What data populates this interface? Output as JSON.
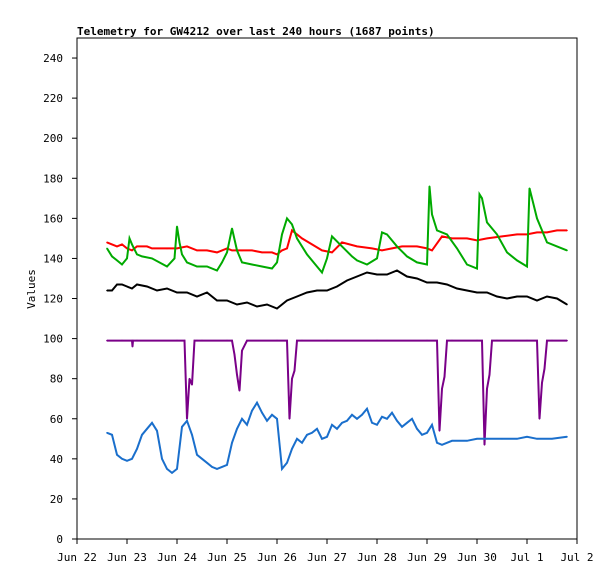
{
  "chart_data": {
    "type": "line",
    "title": "Telemetry for GW4212 over last 240 hours (1687 points)",
    "xlabel": "",
    "ylabel": "Values",
    "ylim": [
      0,
      250
    ],
    "yticks": [
      0,
      20,
      40,
      60,
      80,
      100,
      120,
      140,
      160,
      180,
      200,
      220,
      240
    ],
    "xlim": [
      0,
      10
    ],
    "xticks": [
      {
        "x": 0,
        "label": "Jun 22"
      },
      {
        "x": 1,
        "label": "Jun 23"
      },
      {
        "x": 2,
        "label": "Jun 24"
      },
      {
        "x": 3,
        "label": "Jun 25"
      },
      {
        "x": 4,
        "label": "Jun 26"
      },
      {
        "x": 5,
        "label": "Jun 27"
      },
      {
        "x": 6,
        "label": "Jun 28"
      },
      {
        "x": 7,
        "label": "Jun 29"
      },
      {
        "x": 8,
        "label": "Jun 30"
      },
      {
        "x": 9,
        "label": "Jul 1"
      },
      {
        "x": 10,
        "label": "Jul 2"
      }
    ],
    "grid": false,
    "legend": "none",
    "series": [
      {
        "color": "#ff0000",
        "x": [
          0.6,
          0.7,
          0.8,
          0.9,
          1.0,
          1.1,
          1.2,
          1.4,
          1.5,
          1.8,
          2.0,
          2.2,
          2.4,
          2.6,
          2.8,
          3.0,
          3.1,
          3.3,
          3.5,
          3.7,
          3.9,
          4.0,
          4.1,
          4.2,
          4.3,
          4.5,
          4.7,
          4.9,
          5.1,
          5.3,
          5.6,
          5.9,
          6.1,
          6.3,
          6.5,
          6.8,
          7.0,
          7.1,
          7.3,
          7.5,
          7.8,
          8.0,
          8.2,
          8.5,
          8.8,
          9.0,
          9.2,
          9.4,
          9.6,
          9.8
        ],
        "values": [
          148,
          147,
          146,
          147,
          145,
          144,
          146,
          146,
          145,
          145,
          145,
          146,
          144,
          144,
          143,
          145,
          144,
          144,
          144,
          143,
          143,
          142,
          144,
          145,
          154,
          150,
          147,
          144,
          143,
          148,
          146,
          145,
          144,
          145,
          146,
          146,
          145,
          144,
          151,
          150,
          150,
          149,
          150,
          151,
          152,
          152,
          153,
          153,
          154,
          154
        ]
      },
      {
        "color": "#00aa00",
        "x": [
          0.6,
          0.7,
          0.8,
          0.9,
          1.0,
          1.05,
          1.1,
          1.2,
          1.3,
          1.5,
          1.8,
          1.95,
          2.0,
          2.05,
          2.1,
          2.2,
          2.4,
          2.6,
          2.8,
          2.9,
          3.0,
          3.1,
          3.2,
          3.3,
          3.5,
          3.7,
          3.9,
          4.0,
          4.1,
          4.2,
          4.3,
          4.4,
          4.6,
          4.8,
          4.9,
          5.0,
          5.1,
          5.3,
          5.5,
          5.6,
          5.8,
          6.0,
          6.1,
          6.2,
          6.4,
          6.6,
          6.8,
          7.0,
          7.05,
          7.1,
          7.2,
          7.4,
          7.6,
          7.8,
          8.0,
          8.05,
          8.1,
          8.2,
          8.4,
          8.6,
          8.8,
          9.0,
          9.05,
          9.1,
          9.2,
          9.4,
          9.6,
          9.8
        ],
        "values": [
          145,
          141,
          139,
          137,
          140,
          150,
          147,
          142,
          141,
          140,
          136,
          140,
          156,
          148,
          142,
          138,
          136,
          136,
          134,
          138,
          143,
          155,
          144,
          138,
          137,
          136,
          135,
          138,
          152,
          160,
          157,
          150,
          142,
          136,
          133,
          140,
          151,
          146,
          141,
          139,
          137,
          140,
          153,
          152,
          146,
          141,
          138,
          137,
          176,
          162,
          154,
          152,
          145,
          137,
          135,
          172,
          170,
          158,
          152,
          143,
          139,
          136,
          175,
          170,
          160,
          148,
          146,
          144
        ]
      },
      {
        "color": "#000000",
        "x": [
          0.6,
          0.7,
          0.8,
          0.9,
          1.0,
          1.1,
          1.2,
          1.4,
          1.6,
          1.8,
          2.0,
          2.2,
          2.4,
          2.6,
          2.8,
          3.0,
          3.2,
          3.4,
          3.6,
          3.8,
          4.0,
          4.2,
          4.4,
          4.6,
          4.8,
          5.0,
          5.2,
          5.4,
          5.6,
          5.8,
          6.0,
          6.2,
          6.4,
          6.6,
          6.8,
          7.0,
          7.2,
          7.4,
          7.6,
          7.8,
          8.0,
          8.2,
          8.4,
          8.6,
          8.8,
          9.0,
          9.2,
          9.4,
          9.6,
          9.8
        ],
        "values": [
          124,
          124,
          127,
          127,
          126,
          125,
          127,
          126,
          124,
          125,
          123,
          123,
          121,
          123,
          119,
          119,
          117,
          118,
          116,
          117,
          115,
          119,
          121,
          123,
          124,
          124,
          126,
          129,
          131,
          133,
          132,
          132,
          134,
          131,
          130,
          128,
          128,
          127,
          125,
          124,
          123,
          123,
          121,
          120,
          121,
          121,
          119,
          121,
          120,
          117
        ]
      },
      {
        "color": "#7a0088",
        "x": [
          0.6,
          0.9,
          1.1,
          1.11,
          1.12,
          1.2,
          2.0,
          2.15,
          2.2,
          2.25,
          2.3,
          2.35,
          2.4,
          2.5,
          3.0,
          3.1,
          3.15,
          3.2,
          3.25,
          3.3,
          3.4,
          4.0,
          4.2,
          4.25,
          4.3,
          4.35,
          4.4,
          4.5,
          5.0,
          6.0,
          7.0,
          7.2,
          7.25,
          7.3,
          7.35,
          7.4,
          7.5,
          8.0,
          8.1,
          8.15,
          8.2,
          8.25,
          8.3,
          8.4,
          9.0,
          9.2,
          9.25,
          9.3,
          9.35,
          9.4,
          9.5,
          9.8
        ],
        "values": [
          99,
          99,
          99,
          96,
          99,
          99,
          99,
          99,
          60,
          80,
          77,
          99,
          99,
          99,
          99,
          99,
          92,
          82,
          74,
          94,
          99,
          99,
          99,
          60,
          80,
          84,
          99,
          99,
          99,
          99,
          99,
          99,
          54,
          75,
          81,
          99,
          99,
          99,
          99,
          47,
          75,
          82,
          99,
          99,
          99,
          99,
          60,
          78,
          85,
          99,
          99,
          99
        ]
      },
      {
        "color": "#1a6fcc",
        "x": [
          0.6,
          0.7,
          0.8,
          0.9,
          1.0,
          1.1,
          1.2,
          1.3,
          1.4,
          1.5,
          1.6,
          1.7,
          1.8,
          1.9,
          2.0,
          2.1,
          2.2,
          2.3,
          2.4,
          2.5,
          2.6,
          2.7,
          2.8,
          2.9,
          3.0,
          3.1,
          3.2,
          3.3,
          3.4,
          3.5,
          3.6,
          3.7,
          3.8,
          3.9,
          4.0,
          4.1,
          4.2,
          4.3,
          4.4,
          4.5,
          4.6,
          4.7,
          4.8,
          4.9,
          5.0,
          5.1,
          5.2,
          5.3,
          5.4,
          5.5,
          5.6,
          5.7,
          5.8,
          5.9,
          6.0,
          6.1,
          6.2,
          6.3,
          6.4,
          6.5,
          6.6,
          6.7,
          6.8,
          6.9,
          7.0,
          7.1,
          7.2,
          7.3,
          7.5,
          7.8,
          8.0,
          8.2,
          8.5,
          8.8,
          9.0,
          9.2,
          9.5,
          9.8
        ],
        "values": [
          53,
          52,
          42,
          40,
          39,
          40,
          45,
          52,
          55,
          58,
          54,
          40,
          35,
          33,
          35,
          56,
          59,
          52,
          42,
          40,
          38,
          36,
          35,
          36,
          37,
          48,
          55,
          60,
          57,
          64,
          68,
          63,
          59,
          62,
          60,
          35,
          38,
          45,
          50,
          48,
          52,
          53,
          55,
          50,
          51,
          57,
          55,
          58,
          59,
          62,
          60,
          62,
          65,
          58,
          57,
          61,
          60,
          63,
          59,
          56,
          58,
          60,
          55,
          52,
          53,
          57,
          48,
          47,
          49,
          49,
          50,
          50,
          50,
          50,
          51,
          50,
          50,
          51
        ]
      }
    ]
  }
}
